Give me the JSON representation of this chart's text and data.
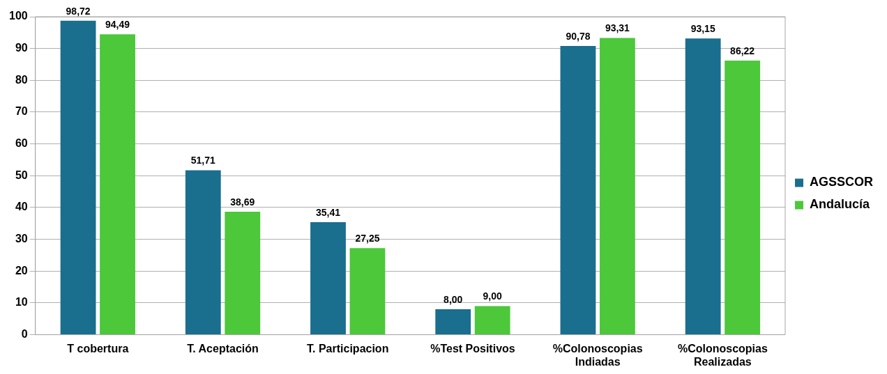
{
  "chart_data": {
    "type": "bar",
    "categories": [
      "T cobertura",
      "T. Aceptación",
      "T. Participacion",
      "%Test Positivos",
      "%Colonoscopias Indiadas",
      "%Colonoscopias Realizadas"
    ],
    "series": [
      {
        "name": "AGSSCOR",
        "color": "#1a6e8e",
        "values": [
          98.72,
          51.71,
          35.41,
          8,
          90.78,
          93.15
        ],
        "value_labels": [
          "98,72",
          "51,71",
          "35,41",
          "8,00",
          "90,78",
          "93,15"
        ]
      },
      {
        "name": "Andalucía",
        "color": "#4cc83a",
        "values": [
          94.49,
          38.69,
          27.25,
          9,
          93.31,
          86.22
        ],
        "value_labels": [
          "94,49",
          "38,69",
          "27,25",
          "9,00",
          "93,31",
          "86,22"
        ]
      }
    ],
    "ylim": [
      0,
      100
    ],
    "yticks": [
      0,
      10,
      20,
      30,
      40,
      50,
      60,
      70,
      80,
      90,
      100
    ],
    "grid": "y",
    "legend": "right"
  }
}
